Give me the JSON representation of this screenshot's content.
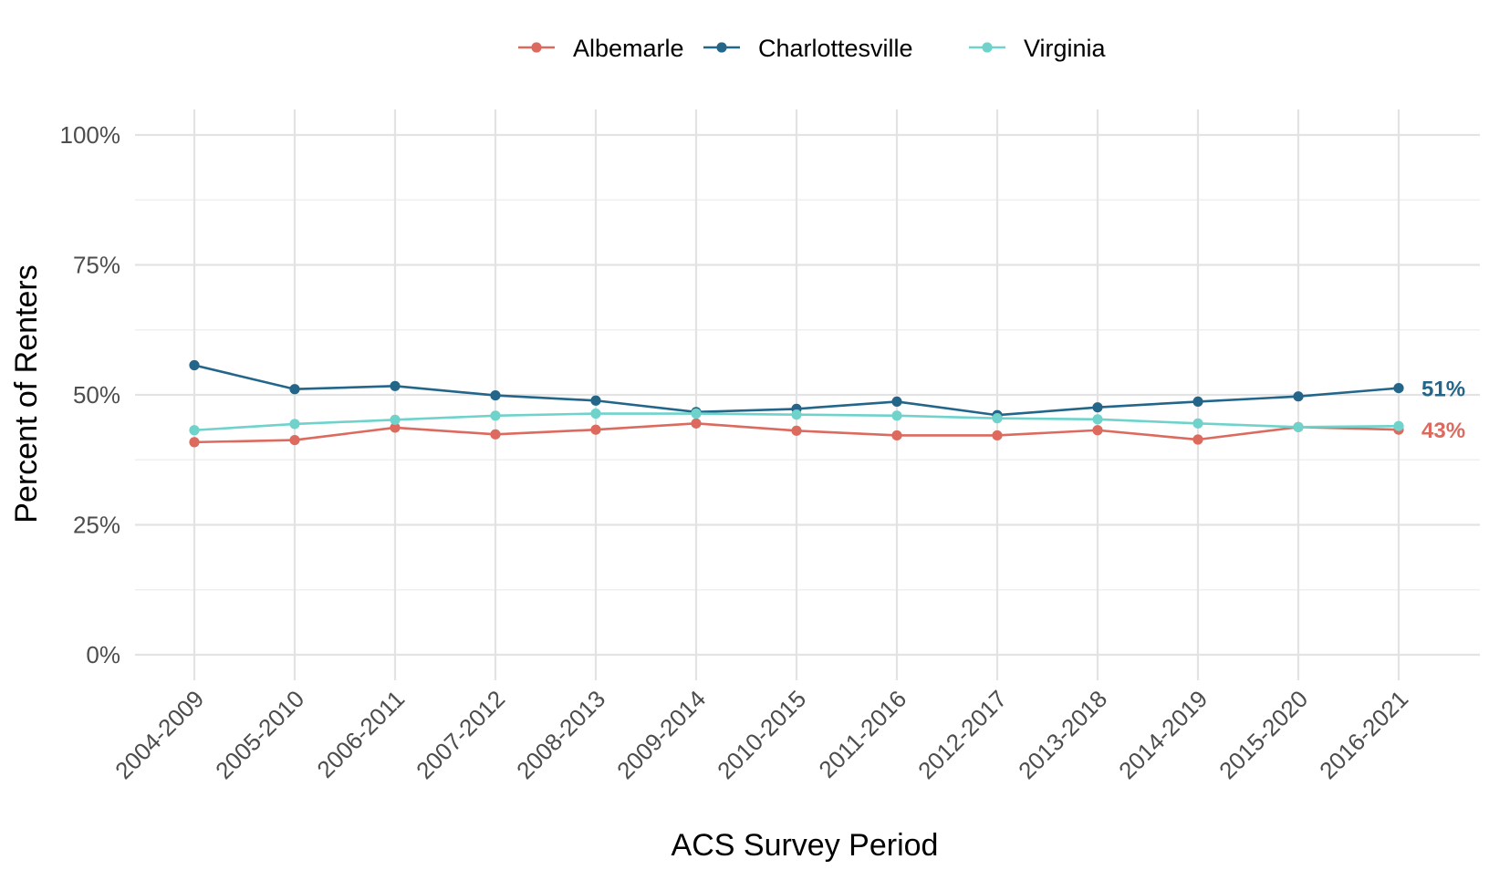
{
  "chart_data": {
    "type": "line",
    "title": "",
    "xlabel": "ACS Survey Period",
    "ylabel": "Percent of Renters",
    "categories": [
      "2004-2009",
      "2005-2010",
      "2006-2011",
      "2007-2012",
      "2008-2013",
      "2009-2014",
      "2010-2015",
      "2011-2016",
      "2012-2017",
      "2013-2018",
      "2014-2019",
      "2015-2020",
      "2016-2021"
    ],
    "ylim": [
      0,
      1
    ],
    "y_ticks": [
      {
        "value": 0,
        "label": "0%"
      },
      {
        "value": 0.25,
        "label": "25%"
      },
      {
        "value": 0.5,
        "label": "50%"
      },
      {
        "value": 0.75,
        "label": "75%"
      },
      {
        "value": 1.0,
        "label": "100%"
      }
    ],
    "grid": true,
    "legend_position": "top",
    "series": [
      {
        "name": "Albemarle",
        "color": "#dc6a5e",
        "values": [
          0.409,
          0.413,
          0.437,
          0.424,
          0.433,
          0.445,
          0.431,
          0.422,
          0.422,
          0.432,
          0.414,
          0.438,
          0.433
        ],
        "end_label": "43%"
      },
      {
        "name": "Charlottesville",
        "color": "#23668a",
        "values": [
          0.557,
          0.511,
          0.517,
          0.499,
          0.489,
          0.467,
          0.473,
          0.487,
          0.461,
          0.476,
          0.487,
          0.497,
          0.513
        ],
        "end_label": "51%"
      },
      {
        "name": "Virginia",
        "color": "#6fd3cc",
        "values": [
          0.432,
          0.444,
          0.452,
          0.46,
          0.464,
          0.464,
          0.462,
          0.46,
          0.455,
          0.453,
          0.445,
          0.438,
          0.44
        ],
        "end_label": ""
      }
    ]
  }
}
